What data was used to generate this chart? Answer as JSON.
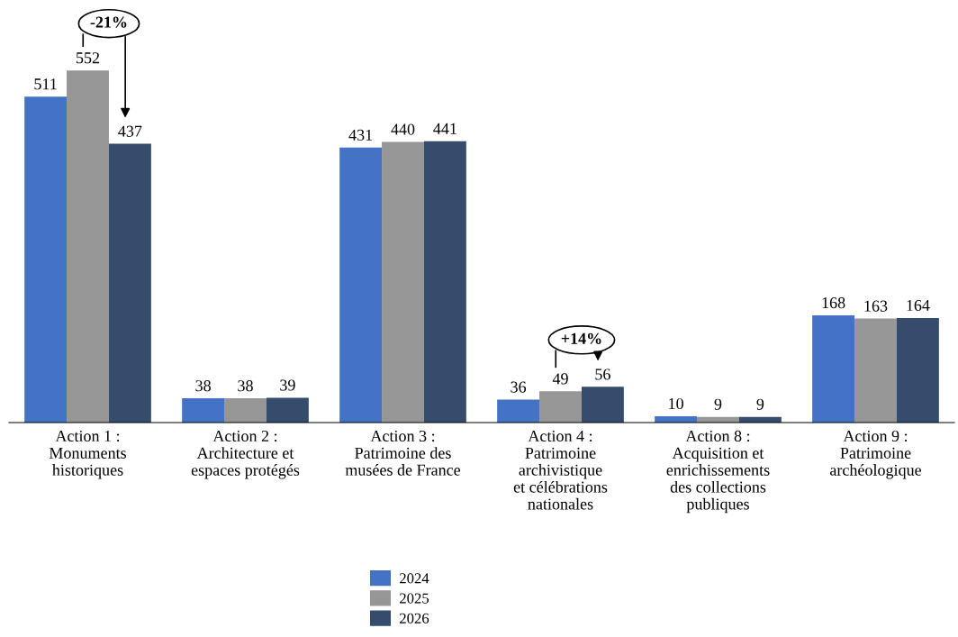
{
  "chart_data": {
    "type": "bar",
    "categories": [
      "Action 1 :\nMonuments\nhistoriques",
      "Action 2 :\nArchitecture et\nespaces protégés",
      "Action 3 :\nPatrimoine des\nmusées de France",
      "Action 4 :\nPatrimoine\narchivistique\net célébrations\nnationales",
      "Action 8 :\nAcquisition et\nenrichissements\ndes collections\npubliques",
      "Action 9 :\nPatrimoine\narchéologique"
    ],
    "series": [
      {
        "name": "2024",
        "color": "#4472c4",
        "values": [
          511,
          38,
          431,
          36,
          10,
          168
        ]
      },
      {
        "name": "2025",
        "color": "#969696",
        "values": [
          552,
          38,
          440,
          49,
          9,
          163
        ]
      },
      {
        "name": "2026",
        "color": "#354c6d",
        "values": [
          437,
          39,
          441,
          56,
          9,
          164
        ]
      }
    ],
    "data_labels": true,
    "legend": "bottom",
    "grid": false,
    "annotations": [
      "-21%",
      "+14%"
    ]
  }
}
